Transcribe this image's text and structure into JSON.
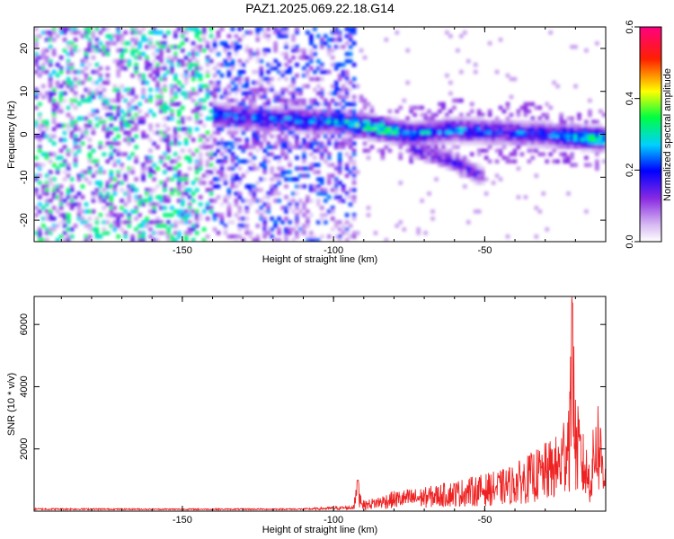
{
  "title": "PAZ1.2025.069.22.18.G14",
  "chart_data": [
    {
      "type": "heatmap",
      "xlabel": "Height of straight line (km)",
      "ylabel": "Frequency (Hz)",
      "xlim": [
        -199,
        -10
      ],
      "ylim": [
        -25,
        25
      ],
      "xticks": [
        -150,
        -100,
        -50
      ],
      "xtick_labels": [
        "-150",
        "-100",
        "-50"
      ],
      "yticks": [
        -20,
        -10,
        0,
        10,
        20
      ],
      "ytick_labels": [
        "-20",
        "-10",
        "0",
        "10",
        "20"
      ],
      "colorbar": {
        "label": "Normalized spectral amplitude",
        "range": [
          0,
          0.6
        ],
        "ticks": [
          0,
          0.2,
          0.4,
          0.6
        ],
        "tick_labels": [
          "0.0",
          "0.2",
          "0.4",
          "0.6"
        ],
        "colormap": "rainbow (white-violet-blue-cyan-green-yellow-red-magenta)"
      },
      "features": {
        "noise_region": {
          "x": [
            -199,
            -93
          ],
          "y": [
            -25,
            25
          ],
          "level": 0.1
        },
        "main_ridge": [
          {
            "x": -140,
            "y": 4.5,
            "level": 0.25
          },
          {
            "x": -120,
            "y": 3.5,
            "level": 0.28
          },
          {
            "x": -100,
            "y": 3,
            "level": 0.3
          },
          {
            "x": -85,
            "y": 1.5,
            "level": 0.45
          },
          {
            "x": -75,
            "y": 0,
            "level": 0.3
          },
          {
            "x": -60,
            "y": 1,
            "level": 0.3
          },
          {
            "x": -45,
            "y": 0.5,
            "level": 0.25
          },
          {
            "x": -30,
            "y": 0,
            "level": 0.28
          },
          {
            "x": -12,
            "y": -1,
            "level": 0.38
          }
        ],
        "secondary_ridge": [
          {
            "x": -75,
            "y": -3,
            "level": 0.2
          },
          {
            "x": -62,
            "y": -6,
            "level": 0.22
          },
          {
            "x": -50,
            "y": -10,
            "level": 0.2
          }
        ]
      }
    },
    {
      "type": "line",
      "xlabel": "Height of straight line (km)",
      "ylabel": "SNR (10 * v/v)",
      "xlim": [
        -199,
        -10
      ],
      "ylim": [
        0,
        6900
      ],
      "xticks": [
        -150,
        -100,
        -50
      ],
      "xtick_labels": [
        "-150",
        "-100",
        "-50"
      ],
      "yticks": [
        2000,
        4000,
        6000
      ],
      "ytick_labels": [
        "2000",
        "4000",
        "6000"
      ],
      "series": [
        {
          "color": "#ee2222",
          "x": [
            -199,
            -150,
            -110,
            -94,
            -92,
            -90,
            -80,
            -70,
            -60,
            -50,
            -45,
            -40,
            -35,
            -30,
            -25,
            -22,
            -21,
            -20,
            -18,
            -15,
            -13,
            -11,
            -10
          ],
          "y": [
            80,
            60,
            70,
            200,
            1000,
            300,
            600,
            700,
            900,
            1100,
            1200,
            1400,
            1700,
            2000,
            2300,
            4000,
            6900,
            3500,
            2500,
            1500,
            3700,
            2400,
            1800
          ]
        }
      ]
    }
  ]
}
